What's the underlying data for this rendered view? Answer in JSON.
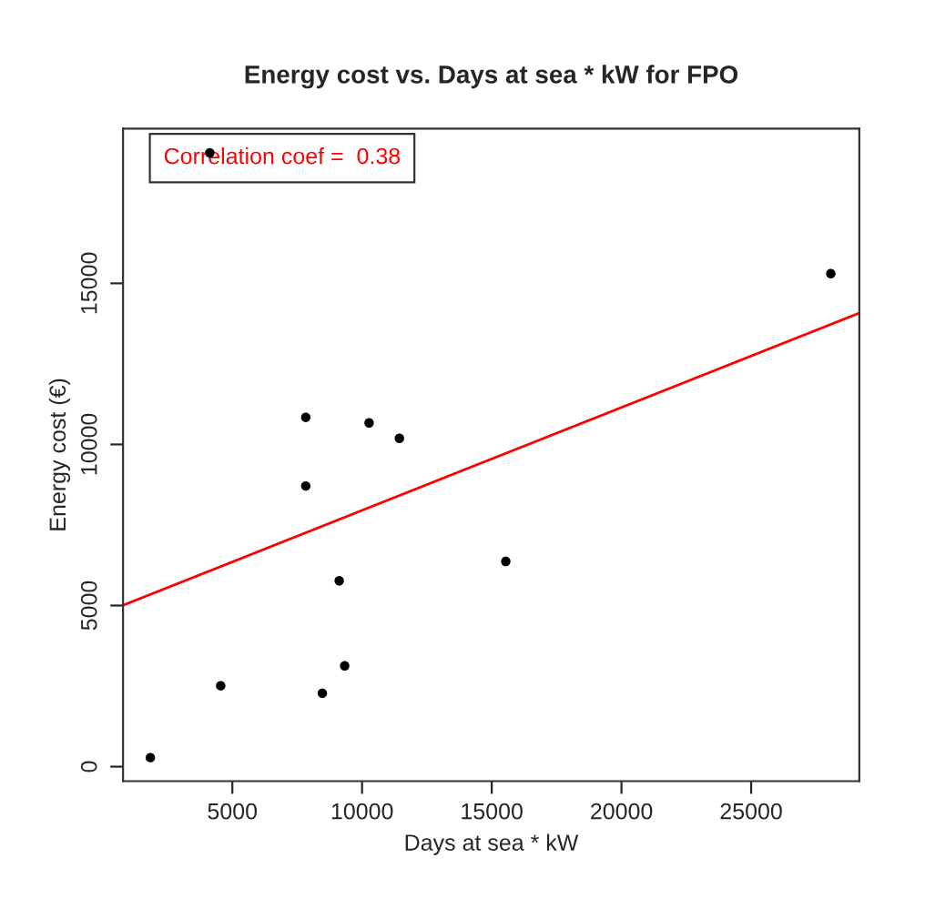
{
  "chart_data": {
    "type": "scatter",
    "title": "Energy cost vs. Days at sea * kW for FPO",
    "xlabel": "Days at sea * kW",
    "ylabel": "Energy cost (€)",
    "x": [
      1840,
      4550,
      4130,
      7830,
      7830,
      8470,
      9120,
      9330,
      10270,
      11440,
      15540,
      28070
    ],
    "series": [
      {
        "color": "#000000",
        "marker": "circle",
        "values": [
          280,
          2510,
          19050,
          10840,
          8710,
          2280,
          5770,
          3130,
          10670,
          10190,
          6370,
          15300
        ]
      },
      {
        "type": "line",
        "color": "#ff0000",
        "x": [
          785,
          29170
        ],
        "values": [
          5010,
          14080
        ]
      }
    ],
    "annotations": [
      "Correlation coef =  0.38"
    ],
    "xlim": [
      785,
      29170
    ],
    "ylim": [
      -450,
      19800
    ],
    "xticks": [
      5000,
      10000,
      15000,
      20000,
      25000
    ],
    "yticks": [
      0,
      5000,
      10000,
      15000
    ],
    "grid": false,
    "legend": false
  }
}
